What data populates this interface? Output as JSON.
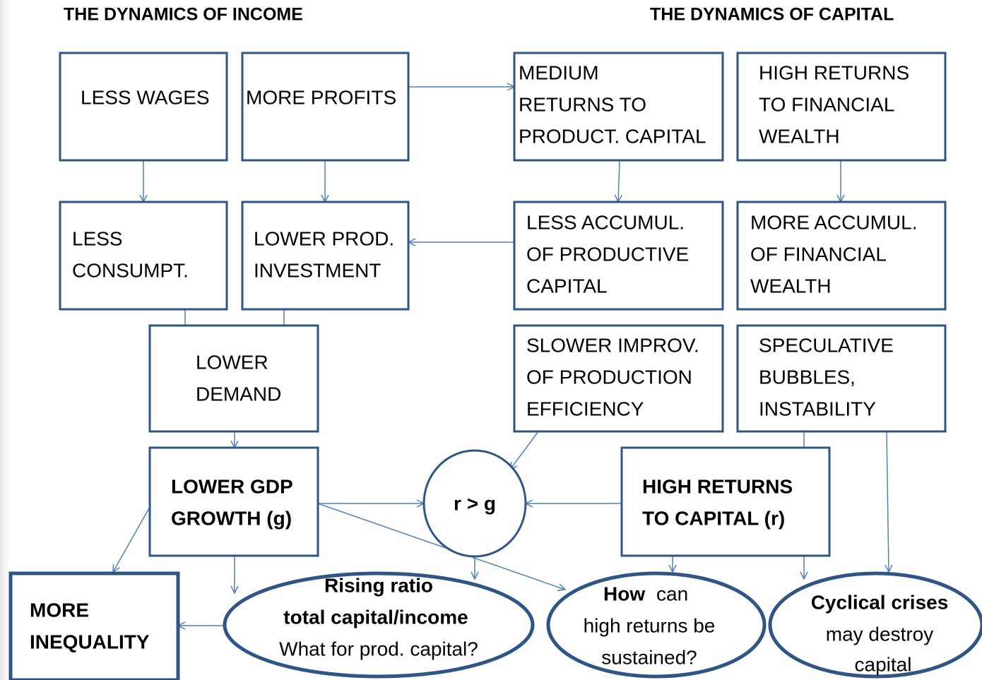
{
  "header": {
    "left": "THE DYNAMICS OF INCOME",
    "right": "THE DYNAMICS OF CAPITAL"
  },
  "nodes": [
    {
      "lines": [
        "LESS WAGES"
      ]
    },
    {
      "lines": [
        "MORE PROFITS"
      ]
    },
    {
      "lines": [
        "MEDIUM",
        "RETURNS TO",
        "PRODUCT. CAPITAL"
      ]
    },
    {
      "lines": [
        "HIGH RETURNS",
        "TO FINANCIAL",
        "WEALTH"
      ]
    },
    {
      "lines": [
        "LESS",
        "CONSUMPT."
      ]
    },
    {
      "lines": [
        "LOWER PROD.",
        "INVESTMENT"
      ]
    },
    {
      "lines": [
        "LESS ACCUMUL.",
        "OF PRODUCTIVE",
        "CAPITAL"
      ]
    },
    {
      "lines": [
        "MORE ACCUMUL.",
        "OF FINANCIAL",
        "WEALTH"
      ]
    },
    {
      "lines": [
        "LOWER",
        "DEMAND"
      ]
    },
    {
      "lines": [
        "SLOWER IMPROV.",
        "OF PRODUCTION",
        "EFFICIENCY"
      ]
    },
    {
      "lines": [
        "SPECULATIVE",
        "BUBBLES,",
        "INSTABILITY"
      ]
    },
    {
      "lines": [
        "LOWER GDP",
        "GROWTH (g)"
      ]
    },
    {
      "lines": [
        "r > g"
      ]
    },
    {
      "lines": [
        "HIGH RETURNS",
        "TO CAPITAL (r)"
      ]
    },
    {
      "lines": [
        "MORE",
        "INEQUALITY"
      ]
    },
    {
      "lines": [
        "Rising ratio",
        "total capital/income",
        "What for prod. capital?"
      ]
    },
    {
      "lines": [
        "How",
        "can",
        "high returns be",
        "sustained?"
      ]
    },
    {
      "lines": [
        "Cyclical crises",
        "may destroy",
        "capital"
      ]
    }
  ]
}
